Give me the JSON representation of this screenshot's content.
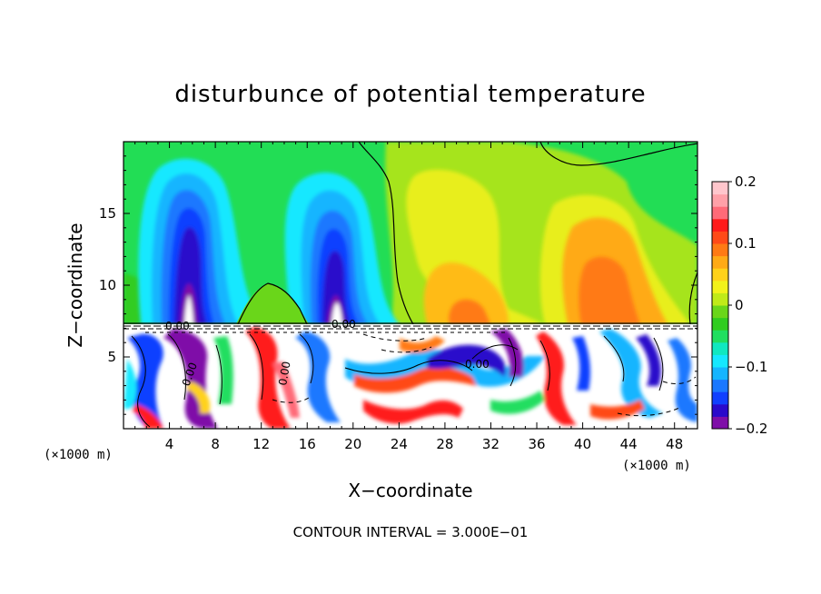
{
  "chart_data": {
    "type": "heatmap",
    "title": "disturbunce of potential temperature",
    "xlabel": "X−coordinate",
    "ylabel": "Z−coordinate",
    "x_unit_label_left": "(×1000 m)",
    "x_unit_label_right": "(×1000 m)",
    "footnote": "CONTOUR INTERVAL = 3.000E−01",
    "xlim": [
      0,
      50
    ],
    "ylim": [
      0,
      20
    ],
    "x_ticks": [
      4,
      8,
      12,
      16,
      20,
      24,
      28,
      32,
      36,
      40,
      44,
      48
    ],
    "x_tick_labels": [
      "4",
      "8",
      "12",
      "16",
      "20",
      "24",
      "28",
      "32",
      "36",
      "40",
      "44",
      "48"
    ],
    "y_ticks": [
      5,
      10,
      15
    ],
    "y_tick_labels": [
      "5",
      "10",
      "15"
    ],
    "colorbar": {
      "range": [
        -0.2,
        0.2
      ],
      "ticks": [
        0.2,
        0.1,
        0,
        -0.1,
        -0.2
      ],
      "tick_labels": [
        "0.2",
        "0.1",
        "0",
        "−0.1",
        "−0.2"
      ],
      "colors": [
        "#7f0fa8",
        "#2a0acb",
        "#1040ff",
        "#1a78ff",
        "#15b5ff",
        "#15e8ff",
        "#10e8c0",
        "#20de60",
        "#30cc20",
        "#6ad61a",
        "#c0ea18",
        "#f2f21a",
        "#ffd21a",
        "#ffaa16",
        "#ff7a14",
        "#ff4a18",
        "#ff1a1a",
        "#ff6a78",
        "#ffa0a8",
        "#ffc6cc"
      ]
    },
    "features": [
      {
        "kind": "cold_column",
        "x_center": 5.5,
        "z_range": [
          7.4,
          16
        ],
        "min_value": -0.18
      },
      {
        "kind": "cold_column",
        "x_center": 19,
        "z_range": [
          7.4,
          16
        ],
        "min_value": -0.18
      },
      {
        "kind": "warm_region",
        "x_center": 30,
        "z_range": [
          7.4,
          17
        ],
        "max_value": 0.1
      },
      {
        "kind": "warm_region",
        "x_center": 42,
        "z_range": [
          7.4,
          15
        ],
        "max_value": 0.13
      },
      {
        "kind": "boundary_layer",
        "z_range": [
          0,
          7.3
        ],
        "description": "strongly disturbed lower layer with white areas outside color range"
      }
    ],
    "contour_labels": [
      "0.00",
      "0.00",
      "0.00",
      "0.00",
      "0.00"
    ],
    "grid": false
  }
}
